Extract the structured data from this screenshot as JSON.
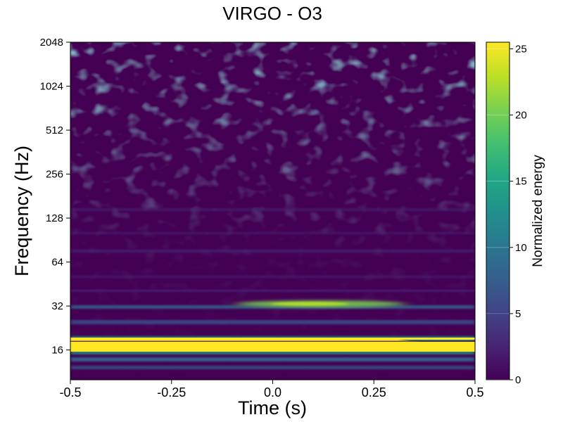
{
  "chart_data": {
    "type": "heatmap",
    "title": "VIRGO - O3",
    "xlabel": "Time (s)",
    "ylabel": "Frequency (Hz)",
    "x_ticks": [
      "-0.5",
      "-0.25",
      "0.0",
      "0.25",
      "0.5"
    ],
    "x_tick_values": [
      -0.5,
      -0.25,
      0.0,
      0.25,
      0.5
    ],
    "xlim": [
      -0.5,
      0.5
    ],
    "y_scale": "log2",
    "y_ticks": [
      "16",
      "32",
      "64",
      "128",
      "256",
      "512",
      "1024",
      "2048"
    ],
    "y_tick_values": [
      16,
      32,
      64,
      128,
      256,
      512,
      1024,
      2048
    ],
    "ylim": [
      10,
      2048
    ],
    "colorbar": {
      "label": "Normalized energy",
      "ticks": [
        "0",
        "5",
        "10",
        "15",
        "20",
        "25"
      ],
      "tick_values": [
        0,
        5,
        10,
        15,
        20,
        25
      ],
      "range": [
        0,
        25.5
      ],
      "colormap": "viridis"
    },
    "features": [
      {
        "frequency_hz": 17,
        "time_range_s": [
          -0.5,
          0.5
        ],
        "energy": 25.5
      },
      {
        "frequency_hz": 33,
        "time_range_s": [
          -0.1,
          0.3
        ],
        "energy": 18
      },
      {
        "frequency_hz": 13.5,
        "time_range_s": [
          -0.5,
          0.5
        ],
        "energy": 6
      }
    ],
    "grid": false
  }
}
